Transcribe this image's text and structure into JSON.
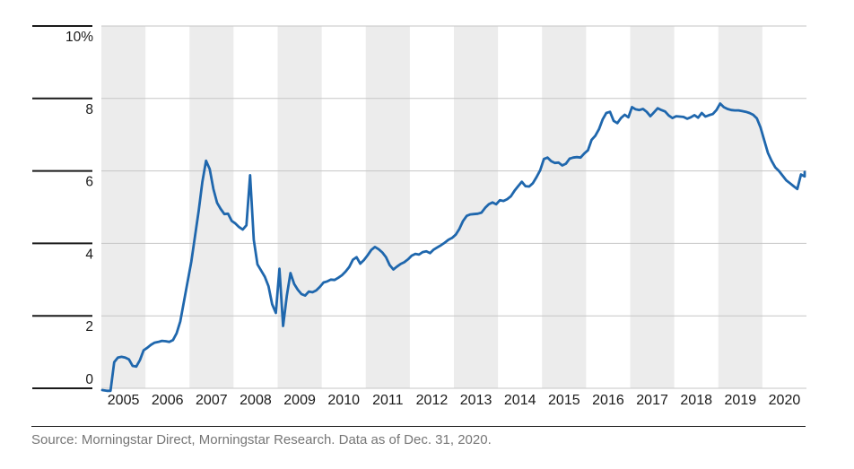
{
  "chart_data": {
    "type": "line",
    "title": "",
    "xlabel": "",
    "ylabel": "",
    "y_min": 0,
    "y_max": 10,
    "y_step": 2,
    "y_tick_labels": [
      "0",
      "2",
      "4",
      "6",
      "8",
      "10%"
    ],
    "x_tick_labels": [
      "2005",
      "2006",
      "2007",
      "2008",
      "2009",
      "2010",
      "2011",
      "2012",
      "2013",
      "2014",
      "2015",
      "2016",
      "2017",
      "2018",
      "2019",
      "2020"
    ],
    "shaded_years": [
      2005,
      2007,
      2009,
      2011,
      2013,
      2015,
      2017,
      2019
    ],
    "grid": "horizontal",
    "legend_position": "none",
    "series": [
      {
        "name": "percent",
        "frequency": "monthly",
        "monthly_values_by_year": [
          {
            "year": 2005,
            "values": [
              -0.05,
              -0.07,
              -0.07,
              0.72,
              0.85,
              0.87,
              0.85,
              0.8,
              0.62,
              0.6,
              0.78,
              1.05
            ]
          },
          {
            "year": 2006,
            "values": [
              1.12,
              1.2,
              1.26,
              1.28,
              1.31,
              1.3,
              1.28,
              1.33,
              1.52,
              1.85,
              2.4,
              2.95
            ]
          },
          {
            "year": 2007,
            "values": [
              3.5,
              4.2,
              4.9,
              5.7,
              6.28,
              6.05,
              5.5,
              5.12,
              4.95,
              4.81,
              4.82,
              4.62
            ]
          },
          {
            "year": 2008,
            "values": [
              4.55,
              4.45,
              4.38,
              4.5,
              5.88,
              4.1,
              3.42,
              3.25,
              3.08,
              2.82,
              2.32,
              2.08
            ]
          },
          {
            "year": 2009,
            "values": [
              3.3,
              1.72,
              2.55,
              3.18,
              2.88,
              2.72,
              2.6,
              2.56,
              2.67,
              2.65,
              2.7,
              2.8
            ]
          },
          {
            "year": 2010,
            "values": [
              2.92,
              2.95,
              3.0,
              2.99,
              3.05,
              3.12,
              3.22,
              3.35,
              3.55,
              3.62,
              3.44,
              3.54
            ]
          },
          {
            "year": 2011,
            "values": [
              3.67,
              3.82,
              3.9,
              3.84,
              3.75,
              3.62,
              3.4,
              3.28,
              3.36,
              3.43,
              3.48,
              3.56
            ]
          },
          {
            "year": 2012,
            "values": [
              3.66,
              3.71,
              3.69,
              3.76,
              3.78,
              3.73,
              3.83,
              3.89,
              3.95,
              4.02,
              4.1,
              4.15
            ]
          },
          {
            "year": 2013,
            "values": [
              4.24,
              4.4,
              4.62,
              4.76,
              4.8,
              4.81,
              4.82,
              4.85,
              4.98,
              5.08,
              5.13,
              5.08
            ]
          },
          {
            "year": 2014,
            "values": [
              5.19,
              5.17,
              5.22,
              5.3,
              5.45,
              5.58,
              5.7,
              5.58,
              5.57,
              5.66,
              5.83,
              6.02
            ]
          },
          {
            "year": 2015,
            "values": [
              6.33,
              6.37,
              6.27,
              6.22,
              6.23,
              6.15,
              6.2,
              6.34,
              6.37,
              6.38,
              6.37,
              6.48
            ]
          },
          {
            "year": 2016,
            "values": [
              6.57,
              6.86,
              6.97,
              7.15,
              7.42,
              7.6,
              7.63,
              7.38,
              7.32,
              7.46,
              7.55,
              7.48
            ]
          },
          {
            "year": 2017,
            "values": [
              7.76,
              7.7,
              7.68,
              7.71,
              7.63,
              7.51,
              7.62,
              7.73,
              7.68,
              7.64,
              7.53,
              7.46
            ]
          },
          {
            "year": 2018,
            "values": [
              7.51,
              7.5,
              7.49,
              7.44,
              7.48,
              7.54,
              7.47,
              7.6,
              7.5,
              7.54,
              7.57,
              7.68
            ]
          },
          {
            "year": 2019,
            "values": [
              7.86,
              7.76,
              7.71,
              7.68,
              7.67,
              7.67,
              7.65,
              7.63,
              7.6,
              7.55,
              7.45,
              7.2
            ]
          },
          {
            "year": 2020,
            "values": [
              6.85,
              6.5,
              6.28,
              6.1,
              6.0,
              5.87,
              5.74,
              5.66,
              5.58,
              5.5,
              5.9,
              5.85
            ]
          }
        ],
        "end_value": 5.97
      }
    ],
    "colors": {
      "line": "#1F67AD",
      "band": "#ECECEC",
      "gridline": "#C6C6C6",
      "axis_tick": "#1A1A1A",
      "axis_label": "#1A1A1A",
      "background": "#FFFFFF"
    }
  },
  "footer": {
    "source": "Source: Morningstar Direct, Morningstar Research. Data as of Dec. 31, 2020."
  }
}
